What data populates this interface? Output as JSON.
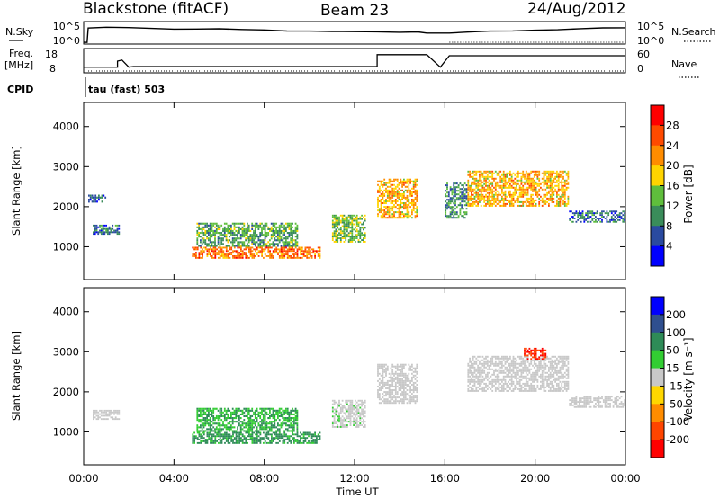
{
  "header": {
    "radar": "Blackstone (fitACF)",
    "beam": "Beam 23",
    "date": "24/Aug/2012"
  },
  "noise_panel": {
    "left_label": "N.Sky",
    "left_ticks": [
      "10^5",
      "10^0"
    ],
    "right_ticks": [
      "10^5",
      "10^0"
    ],
    "right_label": "N.Search"
  },
  "freq_panel": {
    "left_label_line1": "Freq.",
    "left_label_line2": "[MHz]",
    "left_ticks": [
      "18",
      "8"
    ],
    "right_ticks": [
      "60",
      "0"
    ],
    "right_label": "Nave"
  },
  "cpid": {
    "label": "CPID",
    "value": "tau (fast) 503"
  },
  "x_axis": {
    "label": "Time UT",
    "ticks": [
      "00:00",
      "04:00",
      "08:00",
      "12:00",
      "16:00",
      "20:00",
      "00:00"
    ]
  },
  "power_colorbar": {
    "label": "Power [dB]",
    "ticks": [
      "28",
      "24",
      "20",
      "16",
      "12",
      "8",
      "4"
    ],
    "colors": [
      "#ff0000",
      "#ff4a00",
      "#ff8c00",
      "#ffd400",
      "#5fbe3c",
      "#3a8c5a",
      "#2a4aa0",
      "#0000ff"
    ]
  },
  "velocity_colorbar": {
    "label": "Velocity [m s⁻¹]",
    "ticks": [
      "200",
      "100",
      "50",
      "15",
      "-15",
      "-50",
      "-100",
      "-200"
    ],
    "colors": [
      "#0000ff",
      "#2f4f8f",
      "#2e8b57",
      "#32cd32",
      "#c8c8c8",
      "#ffd700",
      "#ff8c00",
      "#ff4500",
      "#ff0000"
    ]
  },
  "chart_data": [
    {
      "type": "line",
      "title": "N.Sky / N.Search",
      "x_range_hours": [
        0,
        24
      ],
      "y_scale": "log",
      "ylim": [
        "10^0",
        "10^5"
      ],
      "gaps_hours": [
        [
          14.8,
          15.2
        ],
        [
          15.8,
          16.2
        ]
      ],
      "series": [
        {
          "name": "N.Sky",
          "x": [
            0.0,
            0.15,
            0.2,
            1,
            2,
            3,
            4,
            5,
            6,
            7,
            8,
            9,
            10,
            11,
            12,
            13,
            14,
            14.8,
            15.2,
            15.8,
            16.2,
            17,
            18,
            19,
            20,
            21,
            22,
            23,
            24
          ],
          "y_log10": [
            0.2,
            0.2,
            3.8,
            3.95,
            3.9,
            3.7,
            3.6,
            3.5,
            3.6,
            3.4,
            3.3,
            3.1,
            3.0,
            3.0,
            2.9,
            2.9,
            2.8,
            2.8,
            2.5,
            2.5,
            2.6,
            2.8,
            3.0,
            3.1,
            3.3,
            3.4,
            3.6,
            3.8,
            3.9
          ]
        }
      ]
    },
    {
      "type": "line",
      "title": "Freq. / Nave",
      "x_range_hours": [
        0,
        24
      ],
      "ylim": [
        8,
        18
      ],
      "gaps_hours": [
        [
          14.8,
          15.2
        ],
        [
          15.8,
          16.2
        ]
      ],
      "series": [
        {
          "name": "Freq.",
          "x": [
            0,
            1.5,
            1.5,
            1.7,
            2.0,
            2.2,
            13.0,
            13.0,
            14.8,
            15.2,
            15.8,
            16.2,
            24
          ],
          "y": [
            10.2,
            10.2,
            13.0,
            13.5,
            10.2,
            10.5,
            10.5,
            16.0,
            16.0,
            16.0,
            10.2,
            15.5,
            15.5
          ]
        }
      ]
    },
    {
      "type": "heatmap",
      "title": "Power",
      "xlabel": "Time UT",
      "ylabel": "Slant Range [km]",
      "x_range_hours": [
        0,
        24
      ],
      "ylim": [
        180,
        4600
      ],
      "y_ticks": [
        1000,
        2000,
        3000,
        4000
      ],
      "colorbar_label": "Power [dB]",
      "colorbar_range": [
        0,
        32
      ],
      "echo_regions": [
        {
          "t0": 0.4,
          "t1": 1.6,
          "r0": 1300,
          "r1": 1550,
          "power": 10
        },
        {
          "t0": 0.2,
          "t1": 1.0,
          "r0": 2100,
          "r1": 2300,
          "power": 8
        },
        {
          "t0": 4.8,
          "t1": 10.5,
          "r0": 700,
          "r1": 1000,
          "power": 26
        },
        {
          "t0": 5.0,
          "t1": 9.5,
          "r0": 1000,
          "r1": 1600,
          "power": 14
        },
        {
          "t0": 11.0,
          "t1": 12.5,
          "r0": 1100,
          "r1": 1800,
          "power": 16
        },
        {
          "t0": 13.0,
          "t1": 14.8,
          "r0": 1700,
          "r1": 2700,
          "power": 22
        },
        {
          "t0": 16.0,
          "t1": 17.0,
          "r0": 1700,
          "r1": 2600,
          "power": 12
        },
        {
          "t0": 17.0,
          "t1": 21.5,
          "r0": 2000,
          "r1": 2900,
          "power": 22
        },
        {
          "t0": 21.5,
          "t1": 24.0,
          "r0": 1600,
          "r1": 1900,
          "power": 10
        }
      ]
    },
    {
      "type": "heatmap",
      "title": "Velocity",
      "xlabel": "Time UT",
      "ylabel": "Slant Range [km]",
      "x_range_hours": [
        0,
        24
      ],
      "ylim": [
        180,
        4600
      ],
      "y_ticks": [
        1000,
        2000,
        3000,
        4000
      ],
      "colorbar_label": "Velocity [m s⁻¹]",
      "colorbar_range": [
        -250,
        250
      ],
      "echo_regions": [
        {
          "t0": 0.4,
          "t1": 1.6,
          "r0": 1300,
          "r1": 1550,
          "velocity": 0
        },
        {
          "t0": 4.8,
          "t1": 10.5,
          "r0": 700,
          "r1": 1000,
          "velocity": 40
        },
        {
          "t0": 5.0,
          "t1": 9.5,
          "r0": 1000,
          "r1": 1600,
          "velocity": 30
        },
        {
          "t0": 11.0,
          "t1": 12.5,
          "r0": 1100,
          "r1": 1800,
          "velocity": 5
        },
        {
          "t0": 13.0,
          "t1": 14.8,
          "r0": 1700,
          "r1": 2700,
          "velocity": 0
        },
        {
          "t0": 17.0,
          "t1": 21.5,
          "r0": 2000,
          "r1": 2900,
          "velocity": 0
        },
        {
          "t0": 19.5,
          "t1": 20.5,
          "r0": 2800,
          "r1": 3100,
          "velocity": -150
        },
        {
          "t0": 21.5,
          "t1": 24.0,
          "r0": 1600,
          "r1": 1900,
          "velocity": 0
        }
      ]
    }
  ]
}
